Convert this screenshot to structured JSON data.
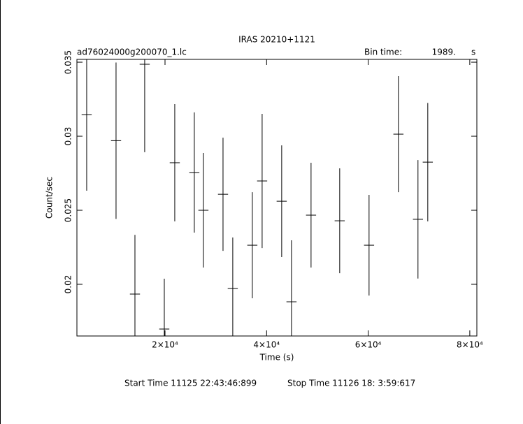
{
  "chart_data": {
    "type": "errorbar",
    "title": "IRAS 20210+1121",
    "subtitle": "ad76024000g200070_1.lc",
    "bin_time_label": "Bin time:",
    "bin_time": {
      "value": 1989,
      "label": "1989."
    },
    "bin_time_unit": "s",
    "x_label": "Time (s)",
    "y_label": "Count/sec",
    "start_time": "Start Time 11125 22:43:46:899",
    "stop_time": "Stop Time 11126 18: 3:59:617",
    "color": "#000000",
    "xlim": [
      2657,
      81390
    ],
    "ylim": [
      0.01651,
      0.03519
    ],
    "xticks": [
      {
        "value": 20000,
        "label": "2×10⁴"
      },
      {
        "value": 40000,
        "label": "4×10⁴"
      },
      {
        "value": 60000,
        "label": "6×10⁴"
      },
      {
        "value": 80000,
        "label": "8×10⁴"
      }
    ],
    "yticks": [
      0.02,
      0.025,
      0.03,
      0.035
    ],
    "x": [
      4580,
      10360,
      14080,
      16000,
      19860,
      21920,
      25770,
      27560,
      31420,
      33340,
      37190,
      39120,
      42970,
      44900,
      48750,
      54390,
      60170,
      65950,
      69800,
      71730
    ],
    "values": [
      0.03146,
      0.0297,
      0.01934,
      0.03486,
      0.01698,
      0.02821,
      0.02755,
      0.025,
      0.02608,
      0.01972,
      0.02264,
      0.02698,
      0.02561,
      0.01882,
      0.02467,
      0.02429,
      0.02264,
      0.03014,
      0.02439,
      0.02825
    ],
    "errors": [
      0.00514,
      0.00528,
      0.004,
      0.00594,
      0.0034,
      0.00396,
      0.00406,
      0.00387,
      0.00382,
      0.00344,
      0.00358,
      0.00453,
      0.00377,
      0.00415,
      0.00354,
      0.00354,
      0.0034,
      0.00392,
      0.004,
      0.004
    ]
  }
}
